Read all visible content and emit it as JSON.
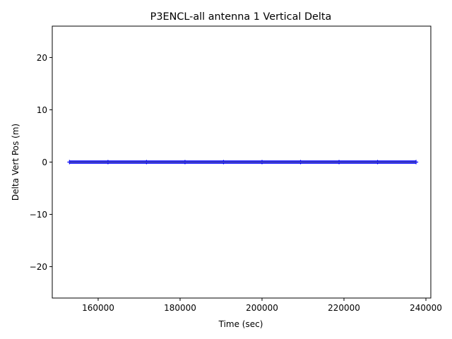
{
  "chart_data": {
    "type": "scatter",
    "title": "P3ENCL-all antenna 1 Vertical Delta",
    "xlabel": "Time (sec)",
    "ylabel": "Delta Vert Pos (m)",
    "xlim": [
      148800,
      241200
    ],
    "ylim": [
      -26,
      26
    ],
    "xticks": [
      160000,
      180000,
      200000,
      220000,
      240000
    ],
    "xtick_labels": [
      "160000",
      "180000",
      "200000",
      "220000",
      "240000"
    ],
    "yticks": [
      -20,
      -10,
      0,
      10,
      20
    ],
    "ytick_labels": [
      "−20",
      "−10",
      "0",
      "10",
      "20"
    ],
    "grid": false,
    "series": [
      {
        "color": "#0000ff",
        "marker": "+",
        "x_range": [
          153000,
          237600
        ],
        "y_range": [
          -0.3,
          0.3
        ],
        "x": [
          153000,
          162400,
          171800,
          181200,
          190600,
          200000,
          209400,
          218800,
          228200,
          237600
        ],
        "y": [
          0,
          0,
          0,
          0,
          0,
          0,
          0,
          0,
          0,
          0
        ]
      }
    ],
    "reference_line": {
      "y": 0,
      "color": "#808080"
    }
  }
}
